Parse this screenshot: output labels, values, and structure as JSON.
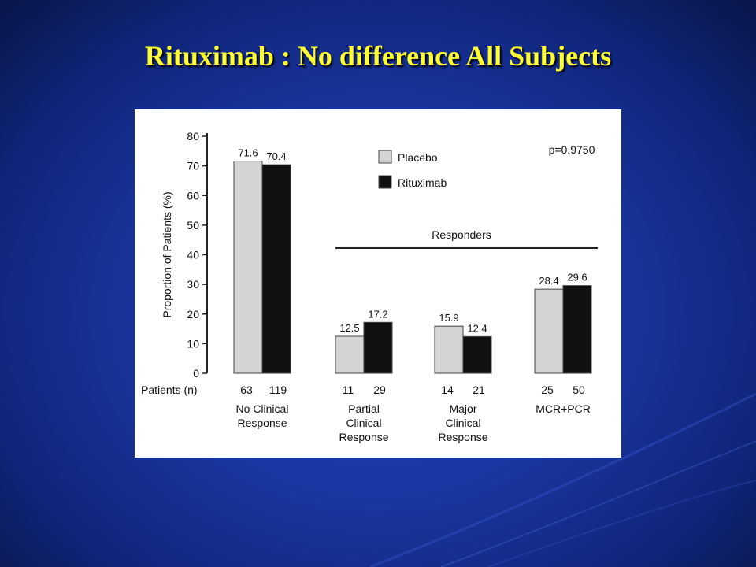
{
  "slide": {
    "title": "Rituximab :  No difference All Subjects",
    "background_color": "#1a37a3",
    "title_color": "#ffff33"
  },
  "chart_data": {
    "type": "bar",
    "ylabel": "Proportion of Patients (%)",
    "ylim": [
      0,
      80
    ],
    "yticks": [
      0,
      10,
      20,
      30,
      40,
      50,
      60,
      70,
      80
    ],
    "grid": false,
    "legend_position": "top-right",
    "annotation": "p=0.9750",
    "bracket_label": "Responders",
    "patients_row_label": "Patients (n)",
    "categories": [
      {
        "lines": [
          "No Clinical",
          "Response"
        ],
        "n": [
          "63",
          "119"
        ]
      },
      {
        "lines": [
          "Partial",
          "Clinical",
          "Response"
        ],
        "n": [
          "11",
          "29"
        ]
      },
      {
        "lines": [
          "Major",
          "Clinical",
          "Response"
        ],
        "n": [
          "14",
          "21"
        ]
      },
      {
        "lines": [
          "MCR+PCR"
        ],
        "n": [
          "25",
          "50"
        ]
      }
    ],
    "series": [
      {
        "name": "Placebo",
        "values": [
          71.6,
          12.5,
          15.9,
          28.4
        ],
        "labels": [
          "71.6",
          "12.5",
          "15.9",
          "28.4"
        ],
        "color": "#d4d4d4"
      },
      {
        "name": "Rituximab",
        "values": [
          70.4,
          17.2,
          12.4,
          29.6
        ],
        "labels": [
          "70.4",
          "17.2",
          "12.4",
          "29.6"
        ],
        "color": "#111111"
      }
    ]
  }
}
